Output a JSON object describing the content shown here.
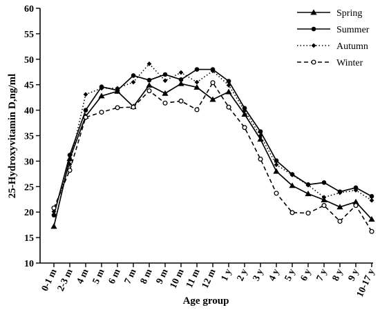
{
  "chart_data": {
    "type": "line",
    "xlabel": "Age group",
    "ylabel": "25-Hydroxyvitamin D,ng/ml",
    "ylim": [
      10,
      60
    ],
    "yticks": [
      10,
      15,
      20,
      25,
      30,
      35,
      40,
      45,
      50,
      55,
      60
    ],
    "categories": [
      "0-1 m",
      "2-3 m",
      "4 m",
      "5 m",
      "6 m",
      "7 m",
      "8 m",
      "9 m",
      "10 m",
      "11 m",
      "12 m",
      "1 y",
      "2 y",
      "3 y",
      "4 y",
      "5 y",
      "6 y",
      "7 y",
      "8 y",
      "9 y",
      "10-17 y"
    ],
    "legend_position": "top-right",
    "grid": false,
    "series": [
      {
        "name": "Spring",
        "marker": "triangle",
        "dash": "solid",
        "color": "#000000",
        "values": [
          17.2,
          30.5,
          38.8,
          42.8,
          43.7,
          40.7,
          44.9,
          43.3,
          45.2,
          44.5,
          42.1,
          43.6,
          39.2,
          34.3,
          28.0,
          25.2,
          23.6,
          22.4,
          21.0,
          22.0,
          18.6
        ]
      },
      {
        "name": "Summer",
        "marker": "circle",
        "dash": "solid",
        "color": "#000000",
        "values": [
          19.4,
          31.2,
          40.0,
          44.6,
          43.9,
          46.8,
          45.9,
          47.0,
          46.0,
          48.0,
          48.0,
          45.7,
          40.4,
          35.8,
          30.1,
          27.4,
          25.4,
          25.8,
          24.0,
          24.8,
          23.1
        ]
      },
      {
        "name": "Autumn",
        "marker": "diamond",
        "dash": "dotted",
        "color": "#000000",
        "values": [
          20.1,
          29.4,
          43.1,
          44.3,
          44.3,
          45.5,
          49.1,
          45.8,
          47.4,
          45.5,
          47.7,
          44.9,
          39.9,
          35.0,
          29.3,
          27.3,
          25.3,
          22.9,
          23.8,
          24.3,
          22.3
        ]
      },
      {
        "name": "Winter",
        "marker": "open-circle",
        "dash": "dashed",
        "color": "#000000",
        "values": [
          20.8,
          28.2,
          38.6,
          39.6,
          40.5,
          40.6,
          43.8,
          41.4,
          41.8,
          40.1,
          45.4,
          40.6,
          36.6,
          30.4,
          23.7,
          19.9,
          19.8,
          21.3,
          18.2,
          21.3,
          16.2
        ]
      }
    ]
  }
}
